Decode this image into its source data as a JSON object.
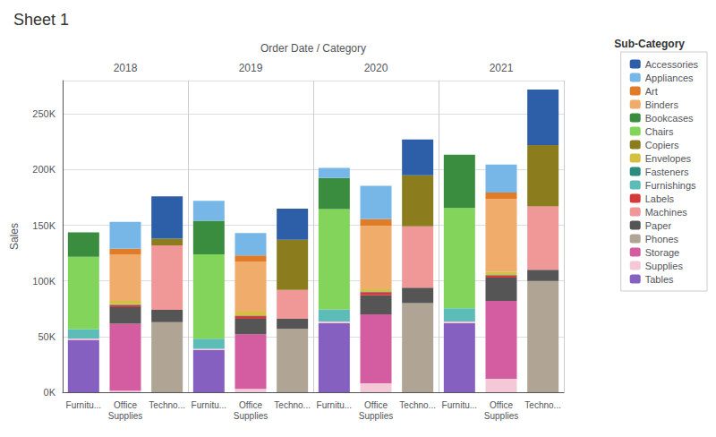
{
  "chart_data": {
    "type": "bar",
    "title": "Sheet 1",
    "xlabel": "Order Date / Category",
    "ylabel": "Sales",
    "group_labels": [
      "2018",
      "2019",
      "2020",
      "2021"
    ],
    "categories": [
      "Furnitu...",
      "Office\nSupplies",
      "Techno...",
      "Furnitu...",
      "Office\nSupplies",
      "Techno...",
      "Furnitu...",
      "Office\nSupplies",
      "Techno...",
      "Furnitu...",
      "Office\nSupplies",
      "Techno..."
    ],
    "stacked": true,
    "grid": true,
    "legend": "upper right",
    "legend_title": "Sub-Category",
    "ylim": [
      0,
      280000
    ],
    "yticks": [
      {
        "value": 0,
        "label": "0K"
      },
      {
        "value": 50000,
        "label": "50K"
      },
      {
        "value": 100000,
        "label": "100K"
      },
      {
        "value": 150000,
        "label": "150K"
      },
      {
        "value": 200000,
        "label": "200K"
      },
      {
        "value": 250000,
        "label": "250K"
      }
    ],
    "series": [
      {
        "name": "Tables",
        "color": "#8660c0",
        "values": [
          47000,
          0,
          0,
          38000,
          0,
          0,
          62000,
          0,
          0,
          62000,
          0,
          0
        ]
      },
      {
        "name": "Supplies",
        "color": "#f5c8d8",
        "values": [
          1200,
          1500,
          0,
          1000,
          3000,
          0,
          1500,
          8000,
          0,
          1500,
          12000,
          0
        ]
      },
      {
        "name": "Storage",
        "color": "#d45ca0",
        "values": [
          0,
          60000,
          0,
          0,
          49000,
          0,
          0,
          62000,
          0,
          0,
          70000,
          0
        ]
      },
      {
        "name": "Phones",
        "color": "#b0a494",
        "values": [
          0,
          0,
          63000,
          0,
          0,
          57000,
          0,
          0,
          80000,
          0,
          0,
          100000
        ]
      },
      {
        "name": "Paper",
        "color": "#555555",
        "values": [
          0,
          15000,
          11000,
          0,
          14000,
          9000,
          0,
          17000,
          14000,
          0,
          21000,
          10000
        ]
      },
      {
        "name": "Machines",
        "color": "#f09898",
        "values": [
          0,
          0,
          58000,
          0,
          0,
          26000,
          0,
          0,
          55000,
          0,
          0,
          57000
        ]
      },
      {
        "name": "Labels",
        "color": "#d43a3a",
        "values": [
          0,
          2000,
          0,
          0,
          2500,
          0,
          0,
          3000,
          0,
          0,
          2000,
          0
        ]
      },
      {
        "name": "Furnishings",
        "color": "#5bbcb8",
        "values": [
          8500,
          0,
          0,
          9000,
          0,
          0,
          11000,
          0,
          0,
          12000,
          0,
          0
        ]
      },
      {
        "name": "Fasteners",
        "color": "#2a8c7e",
        "values": [
          0,
          500,
          0,
          0,
          500,
          0,
          0,
          500,
          0,
          0,
          500,
          0
        ]
      },
      {
        "name": "Envelopes",
        "color": "#d4c040",
        "values": [
          0,
          3000,
          0,
          0,
          3500,
          0,
          0,
          2000,
          0,
          0,
          3000,
          0
        ]
      },
      {
        "name": "Copiers",
        "color": "#8b7d1e",
        "values": [
          0,
          0,
          6000,
          0,
          0,
          45000,
          0,
          0,
          46000,
          0,
          0,
          55000
        ]
      },
      {
        "name": "Chairs",
        "color": "#82d45a",
        "values": [
          65000,
          0,
          0,
          76000,
          0,
          0,
          90000,
          0,
          0,
          90000,
          0,
          0
        ]
      },
      {
        "name": "Bookcases",
        "color": "#3a8c3f",
        "values": [
          22000,
          0,
          0,
          30000,
          0,
          0,
          28000,
          0,
          0,
          48000,
          0,
          0
        ]
      },
      {
        "name": "Binders",
        "color": "#f0ac6a",
        "values": [
          0,
          42000,
          0,
          0,
          45000,
          0,
          0,
          57000,
          0,
          0,
          65000,
          0
        ]
      },
      {
        "name": "Art",
        "color": "#e07b28",
        "values": [
          0,
          5000,
          0,
          0,
          5500,
          0,
          0,
          6000,
          0,
          0,
          6000,
          0
        ]
      },
      {
        "name": "Appliances",
        "color": "#76b7e8",
        "values": [
          0,
          24000,
          0,
          18000,
          20000,
          0,
          9000,
          30000,
          0,
          0,
          25000,
          0
        ]
      },
      {
        "name": "Accessories",
        "color": "#2d5fa8",
        "values": [
          0,
          0,
          38000,
          0,
          0,
          28000,
          0,
          0,
          32000,
          0,
          0,
          50000
        ]
      }
    ]
  }
}
